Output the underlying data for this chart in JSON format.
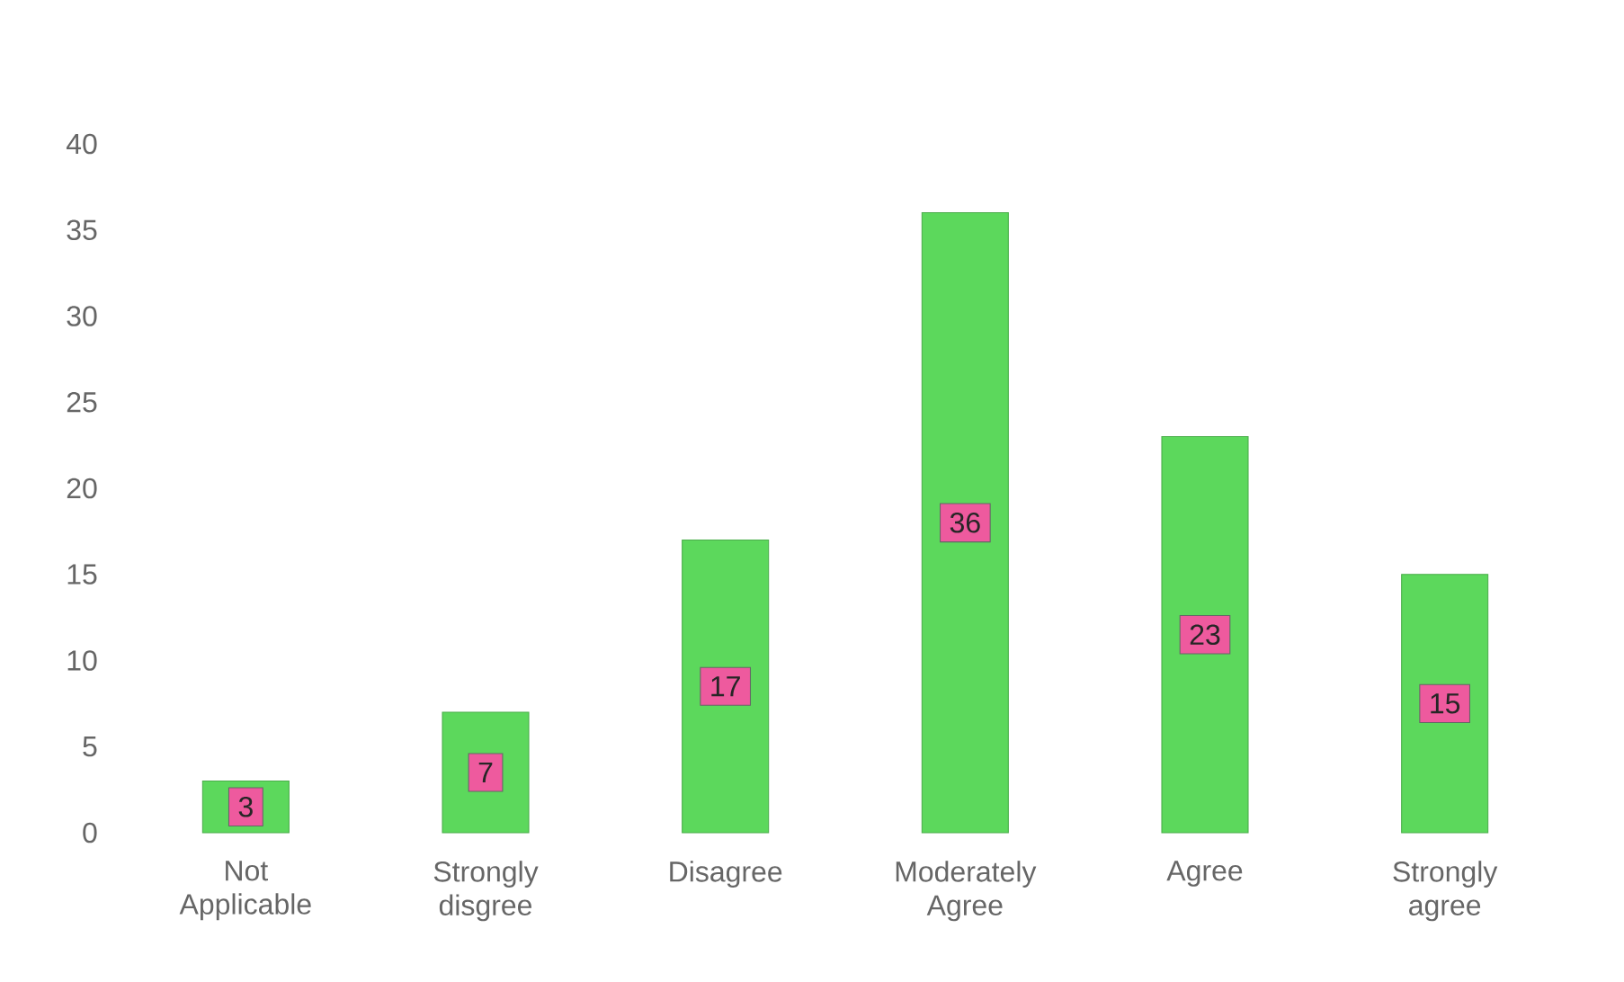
{
  "chart_data": {
    "type": "bar",
    "categories": [
      "Not Applicable",
      "Strongly disgree",
      "Disagree",
      "Moderately Agree",
      "Agree",
      "Strongly agree"
    ],
    "values": [
      3,
      7,
      17,
      36,
      23,
      15
    ],
    "color": "#5cd85c",
    "ylim": [
      0,
      40
    ],
    "yticks": [
      0,
      5,
      10,
      15,
      20,
      25,
      30,
      35,
      40
    ],
    "data_labels": true,
    "grid": false
  }
}
